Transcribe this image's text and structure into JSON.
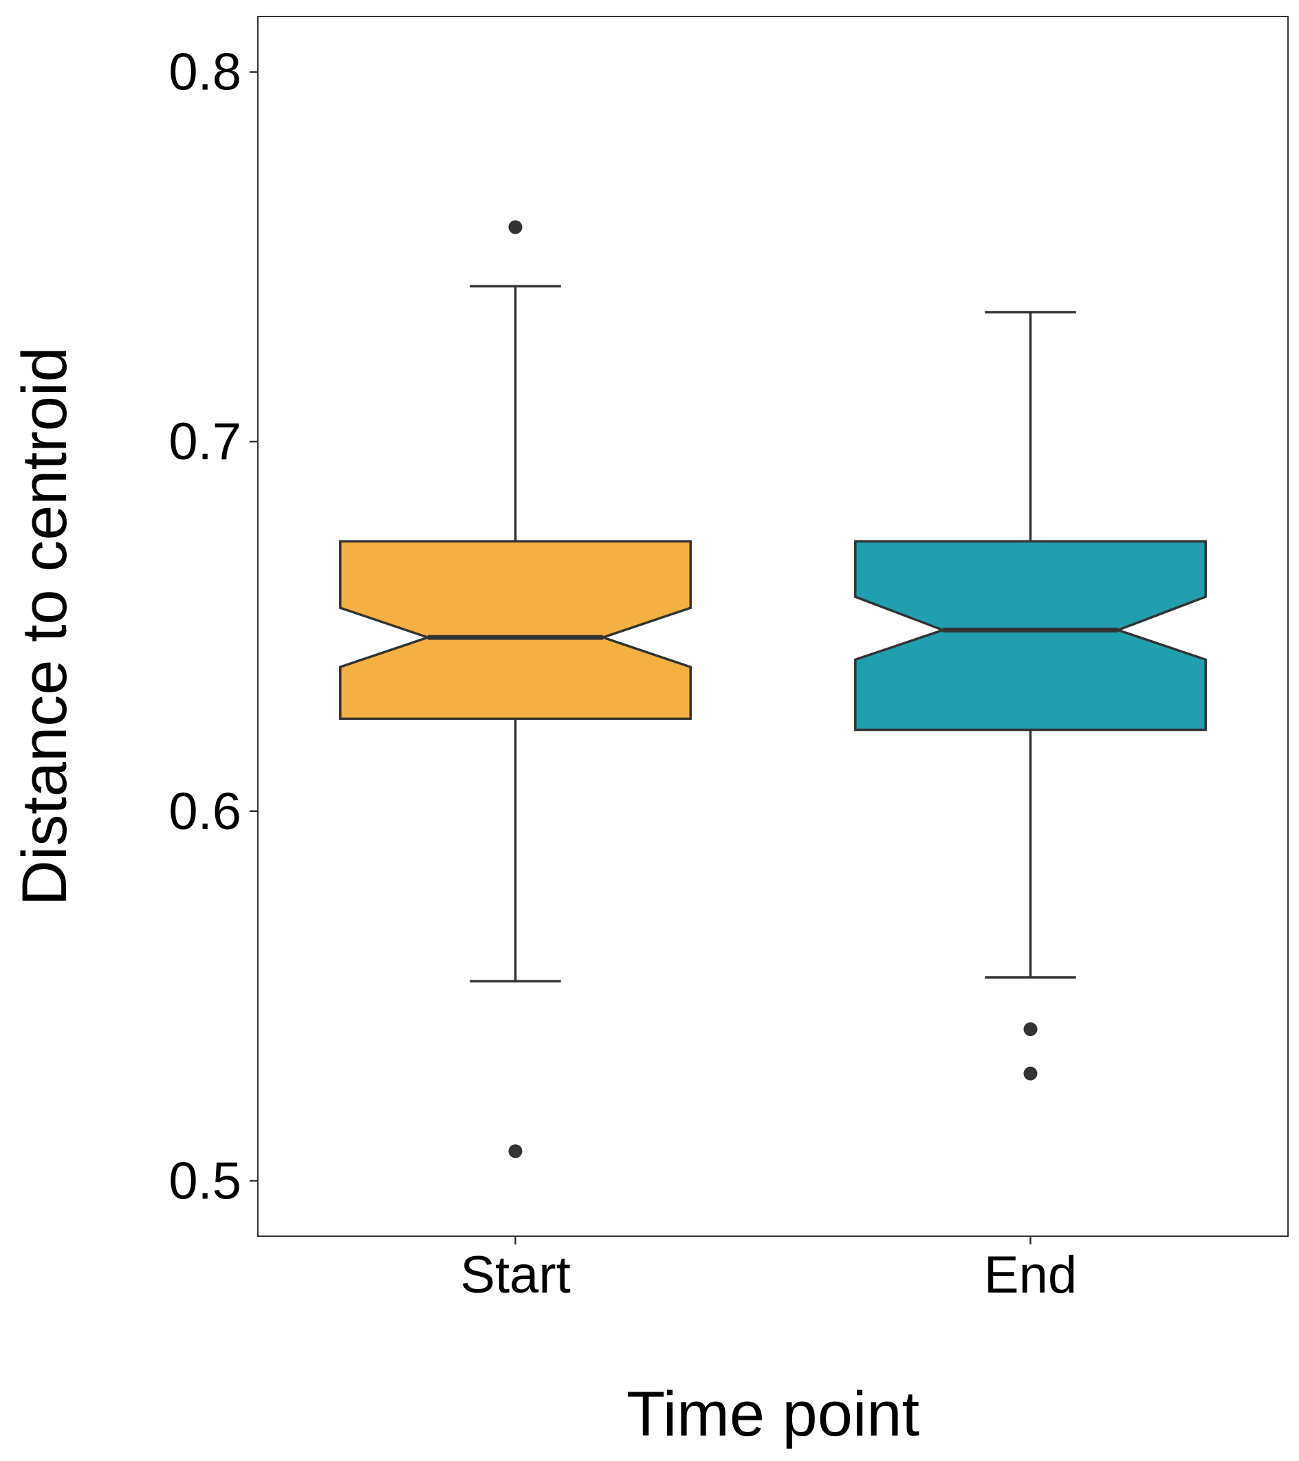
{
  "chart_data": {
    "type": "boxplot",
    "notched": true,
    "xlabel": "Time point",
    "ylabel": "Distance to centroid",
    "ylim": [
      0.485,
      0.815
    ],
    "yticks": [
      0.5,
      0.6,
      0.7,
      0.8
    ],
    "ytick_labels": [
      "0.5",
      "0.6",
      "0.7",
      "0.8"
    ],
    "grid": false,
    "legend": "none",
    "categories": [
      "Start",
      "End"
    ],
    "boxes": [
      {
        "category": "Start",
        "color": "#F4B042",
        "whisker_low": 0.554,
        "q1": 0.625,
        "notch_low": 0.639,
        "median": 0.647,
        "notch_high": 0.655,
        "q3": 0.673,
        "whisker_high": 0.742,
        "outliers": [
          0.758,
          0.508
        ]
      },
      {
        "category": "End",
        "color": "#219FAF",
        "whisker_low": 0.555,
        "q1": 0.622,
        "notch_low": 0.641,
        "median": 0.649,
        "notch_high": 0.658,
        "q3": 0.673,
        "whisker_high": 0.735,
        "outliers": [
          0.541,
          0.529
        ]
      }
    ]
  }
}
